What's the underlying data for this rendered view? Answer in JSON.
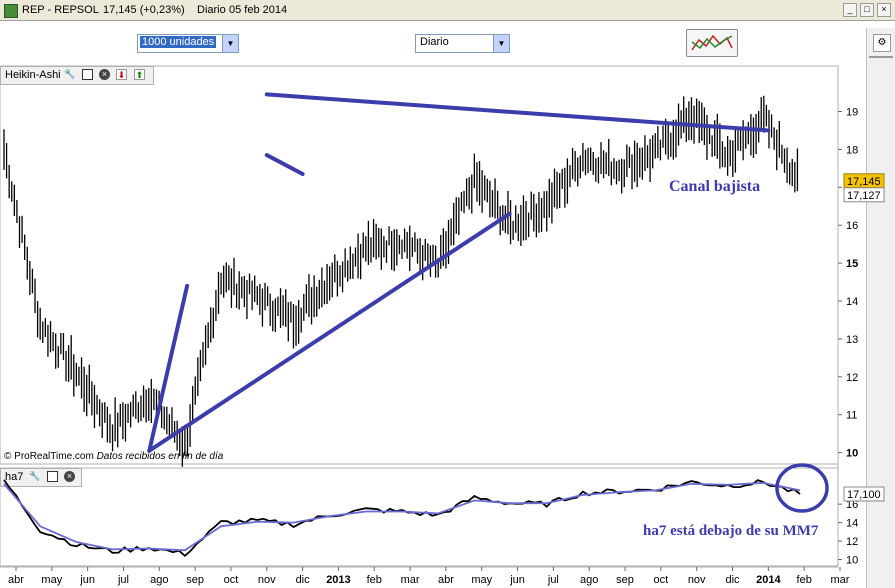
{
  "window": {
    "title_symbol": "REP - REPSOL",
    "title_price": "17,145 (+0,23%)",
    "title_period": "Diario",
    "title_date": "05 feb 2014"
  },
  "toolbar": {
    "units_select": "1000 unidades",
    "period_select": "Diario"
  },
  "main_panel": {
    "label": "Heikin-Ashi",
    "credit_source": "© ProRealTime.com",
    "credit_note": "Datos recibidos en fin de día"
  },
  "lower_panel": {
    "label": "ha7"
  },
  "annotations": {
    "channel": "Canal bajista",
    "ha7_note": "ha7 está debajo de su MM7"
  },
  "colors": {
    "trendline": "#3c3caa",
    "price_bars": "#000000",
    "ma_line": "#6a6ad0",
    "last_price_bg": "#f2c200"
  },
  "chart_data": [
    {
      "type": "ohlc",
      "title": "Heikin-Ashi",
      "price_labels": {
        "last": "17,145",
        "previous": "17,127"
      },
      "x_tick_labels": [
        "abr",
        "may",
        "jun",
        "jul",
        "ago",
        "sep",
        "oct",
        "nov",
        "dic",
        "2013",
        "feb",
        "mar",
        "abr",
        "may",
        "jun",
        "jul",
        "ago",
        "sep",
        "oct",
        "nov",
        "dic",
        "2014",
        "feb",
        "mar"
      ],
      "y_tick_labels": [
        "10",
        "11",
        "12",
        "13",
        "14",
        "15",
        "16",
        "17",
        "18",
        "19"
      ],
      "ylim": [
        9.7,
        20.2
      ],
      "x": [
        "abr",
        "may",
        "jun",
        "jul",
        "ago",
        "sep",
        "oct",
        "nov",
        "dic",
        "2013",
        "feb",
        "mar",
        "abr",
        "may",
        "jun",
        "jul",
        "ago",
        "sep",
        "oct",
        "nov",
        "dic",
        "2014",
        "feb"
      ],
      "close_path": [
        18.0,
        13.4,
        12.1,
        10.6,
        11.5,
        10.2,
        14.6,
        14.1,
        13.5,
        14.6,
        15.4,
        15.6,
        14.9,
        17.2,
        16.0,
        16.5,
        17.8,
        17.5,
        17.9,
        18.9,
        17.8,
        18.8,
        17.1
      ],
      "trendlines": [
        {
          "from": [
            "ago",
            10.05
          ],
          "to": [
            "sep",
            14.4
          ]
        },
        {
          "from": [
            "ago",
            10.05
          ],
          "to": [
            "jun",
            16.3
          ]
        },
        {
          "from": [
            "nov",
            19.45
          ],
          "to": [
            "2014",
            18.5
          ]
        },
        {
          "from": [
            "nov",
            17.85
          ],
          "to": [
            "dic",
            17.35
          ]
        }
      ],
      "grid": false
    },
    {
      "type": "line",
      "title": "ha7",
      "price_labels": {
        "last": "17,100"
      },
      "y_tick_labels": [
        "10",
        "12",
        "14",
        "16"
      ],
      "ylim": [
        9.3,
        19.7
      ],
      "x": [
        "abr",
        "may",
        "jun",
        "jul",
        "ago",
        "sep",
        "oct",
        "nov",
        "dic",
        "2013",
        "feb",
        "mar",
        "abr",
        "may",
        "jun",
        "jul",
        "ago",
        "sep",
        "oct",
        "nov",
        "dic",
        "2014",
        "feb"
      ],
      "series": [
        {
          "values": [
            18.6,
            13.2,
            11.6,
            10.9,
            11.3,
            10.6,
            14.0,
            14.2,
            13.8,
            14.8,
            15.4,
            15.2,
            14.8,
            16.7,
            16.1,
            16.0,
            17.2,
            17.4,
            17.6,
            18.4,
            18.0,
            18.4,
            17.1
          ]
        },
        {
          "values": [
            18.2,
            13.6,
            11.9,
            11.1,
            11.2,
            11.0,
            13.6,
            14.1,
            14.0,
            14.7,
            15.2,
            15.2,
            15.0,
            16.4,
            16.1,
            16.1,
            17.0,
            17.3,
            17.5,
            18.2,
            18.1,
            18.3,
            17.5
          ]
        }
      ],
      "grid": false
    }
  ]
}
